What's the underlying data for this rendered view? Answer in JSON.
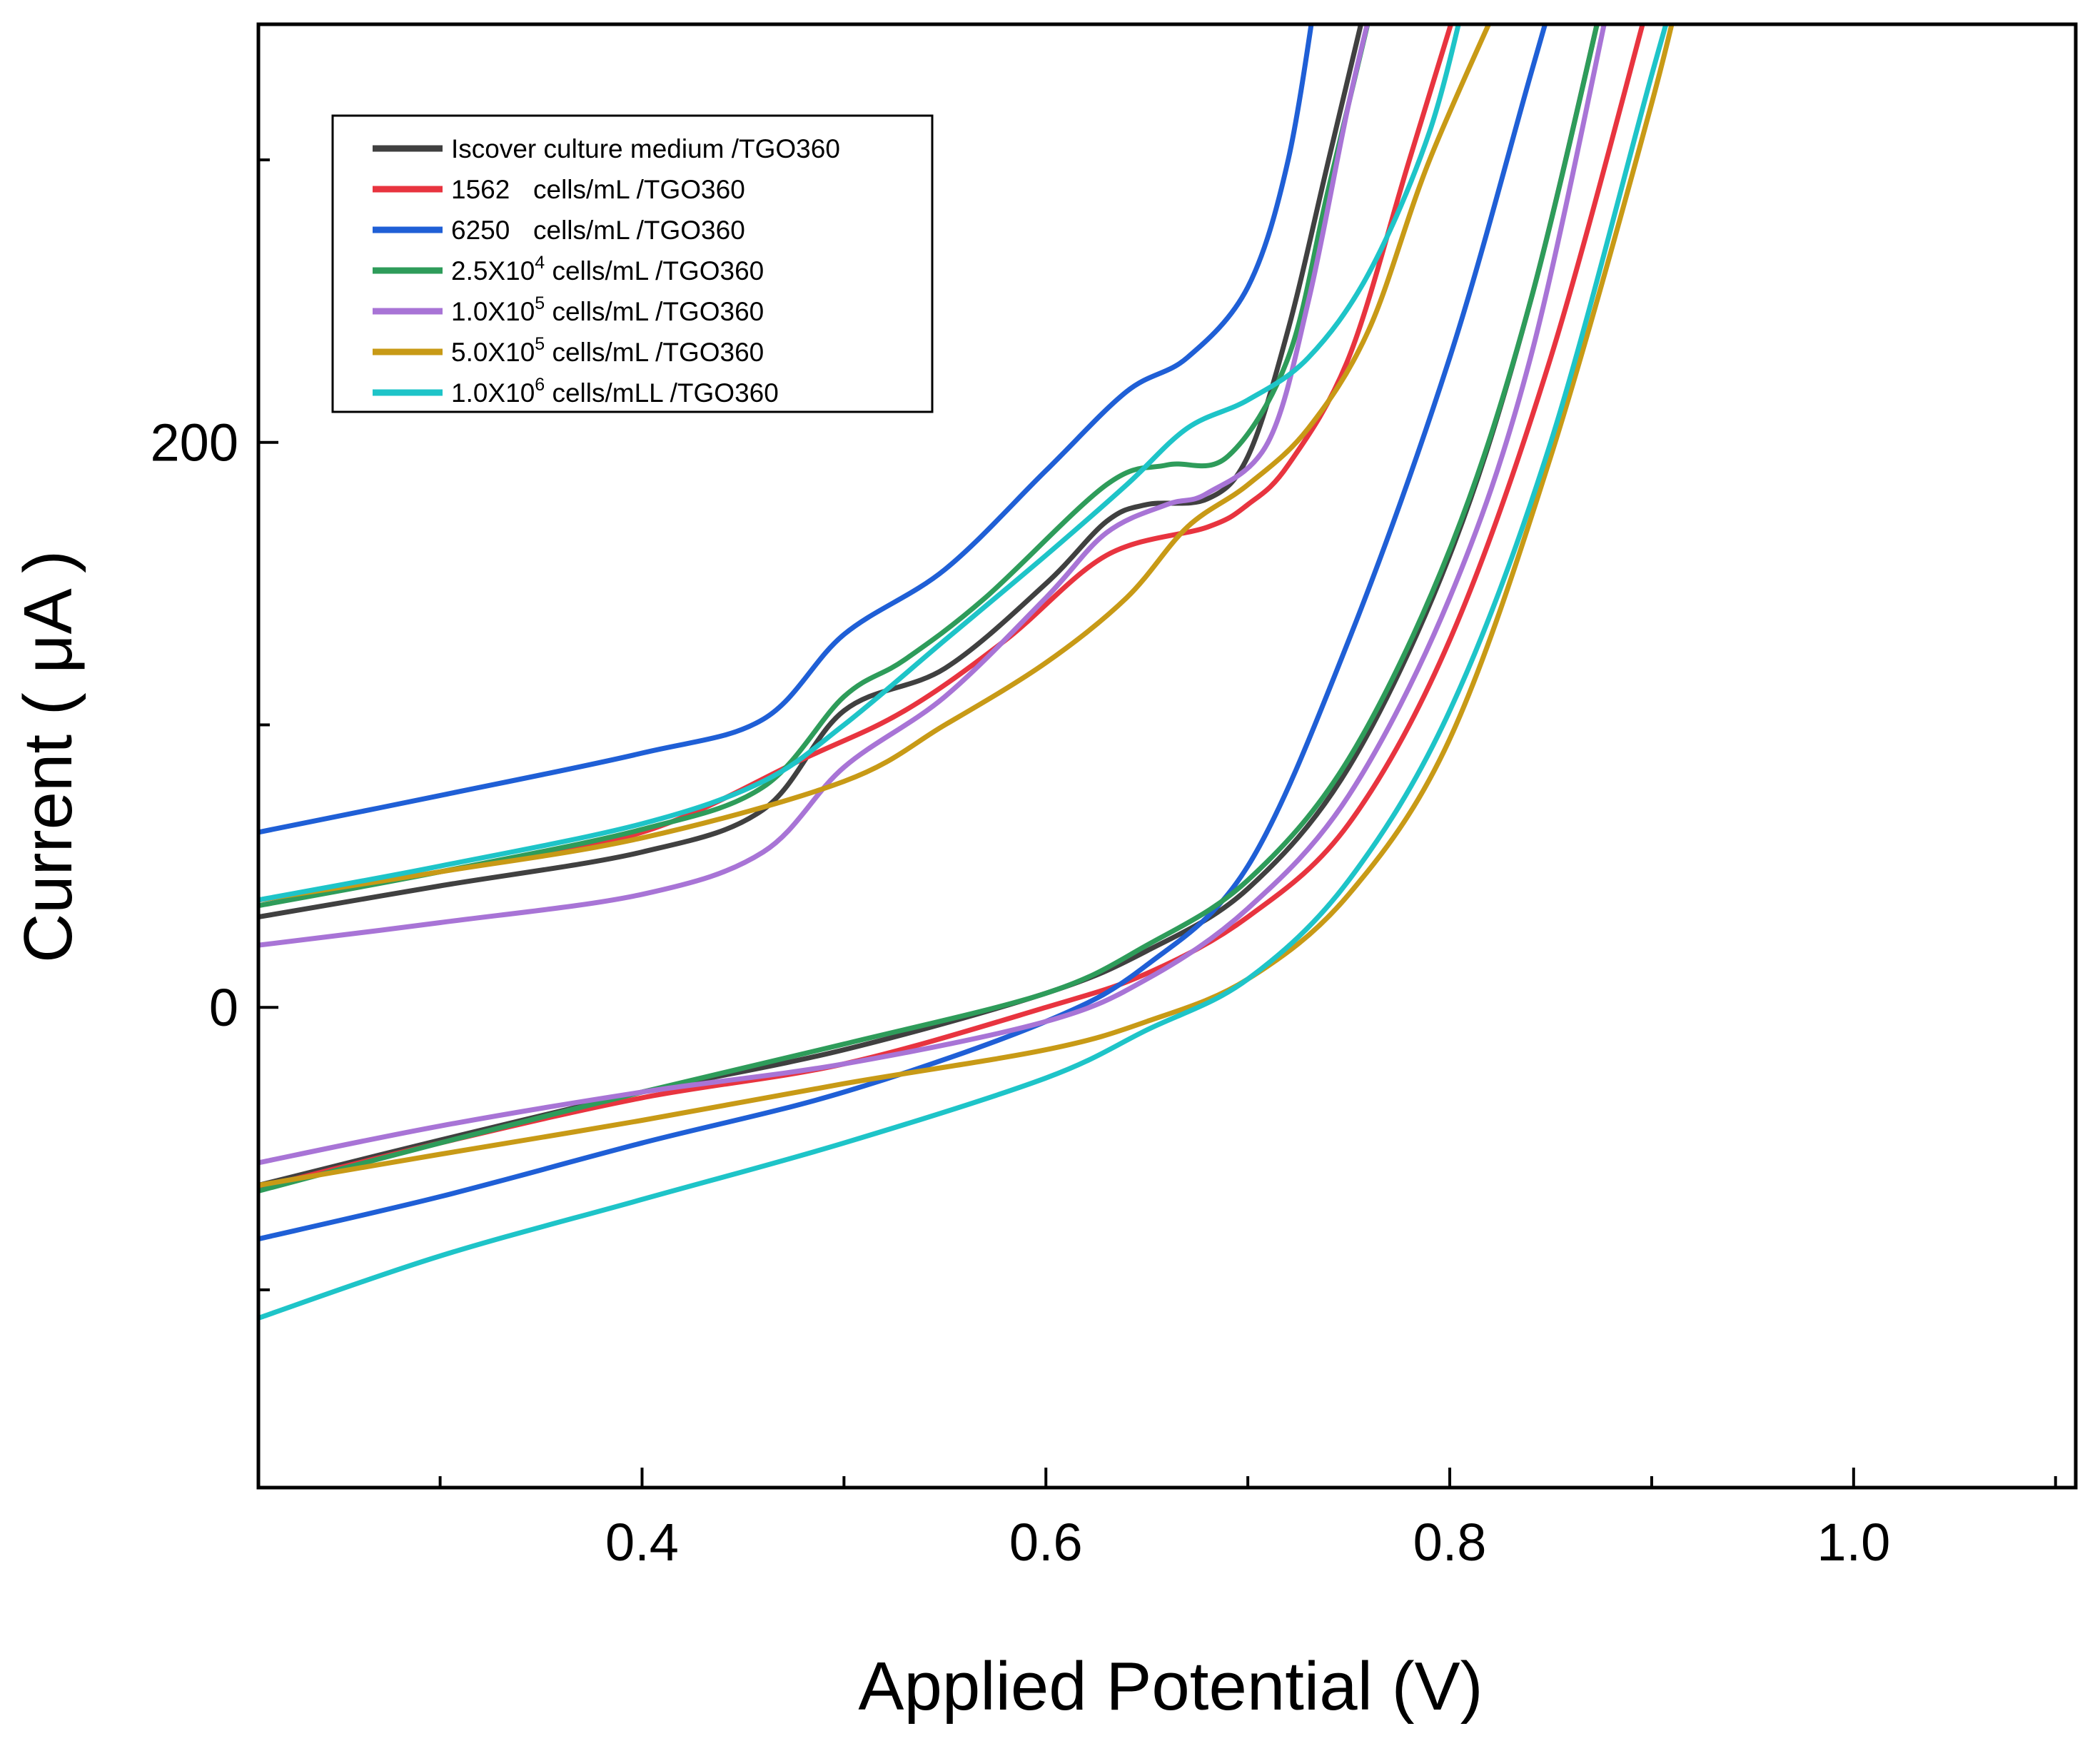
{
  "chart_data": {
    "type": "line",
    "title": "",
    "xlabel": "Applied Potential (V)",
    "ylabel": "Current ( μA )",
    "xlim": [
      0.21,
      1.11
    ],
    "ylim": [
      -170,
      348
    ],
    "x_ticks": [
      {
        "value": 0.4,
        "label": "0.4"
      },
      {
        "value": 0.6,
        "label": "0.6"
      },
      {
        "value": 0.8,
        "label": "0.8"
      },
      {
        "value": 1.0,
        "label": "1.0"
      }
    ],
    "y_ticks": [
      {
        "value": 0,
        "label": "0"
      },
      {
        "value": 200,
        "label": "200"
      }
    ],
    "x_minor_ticks": [
      0.3,
      0.5,
      0.7,
      0.9,
      1.1
    ],
    "y_minor_ticks": [
      -100,
      100,
      300
    ],
    "legend_position": "top-left",
    "series": [
      {
        "name": "Iscover culture medium /TGO360",
        "label_main": "Iscover culture medium /TGO360",
        "color": "#404040",
        "upper": [
          [
            0.21,
            32
          ],
          [
            0.3,
            43
          ],
          [
            0.4,
            55
          ],
          [
            0.46,
            70
          ],
          [
            0.5,
            105
          ],
          [
            0.55,
            120
          ],
          [
            0.6,
            150
          ],
          [
            0.63,
            172
          ],
          [
            0.65,
            178
          ],
          [
            0.68,
            180
          ],
          [
            0.7,
            195
          ],
          [
            0.72,
            240
          ],
          [
            0.74,
            300
          ],
          [
            0.76,
            360
          ]
        ],
        "lower": [
          [
            0.21,
            -63
          ],
          [
            0.3,
            -47
          ],
          [
            0.4,
            -30
          ],
          [
            0.5,
            -15
          ],
          [
            0.6,
            5
          ],
          [
            0.65,
            20
          ],
          [
            0.7,
            42
          ],
          [
            0.75,
            85
          ],
          [
            0.8,
            160
          ],
          [
            0.84,
            250
          ],
          [
            0.88,
            370
          ]
        ]
      },
      {
        "name": "1562 cells/mL /TGO360",
        "label_pre": "1562",
        "label_main": "cells/mL /TGO360",
        "color": "#e8343f",
        "upper": [
          [
            0.21,
            38
          ],
          [
            0.3,
            48
          ],
          [
            0.4,
            62
          ],
          [
            0.48,
            88
          ],
          [
            0.53,
            105
          ],
          [
            0.58,
            130
          ],
          [
            0.63,
            160
          ],
          [
            0.68,
            170
          ],
          [
            0.7,
            178
          ],
          [
            0.72,
            192
          ],
          [
            0.75,
            230
          ],
          [
            0.78,
            300
          ],
          [
            0.81,
            370
          ]
        ],
        "lower": [
          [
            0.21,
            -64
          ],
          [
            0.3,
            -48
          ],
          [
            0.4,
            -32
          ],
          [
            0.5,
            -20
          ],
          [
            0.6,
            0
          ],
          [
            0.65,
            12
          ],
          [
            0.7,
            32
          ],
          [
            0.75,
            65
          ],
          [
            0.8,
            130
          ],
          [
            0.85,
            230
          ],
          [
            0.9,
            360
          ]
        ]
      },
      {
        "name": "6250 cells/mL /TGO360",
        "label_pre": "6250",
        "label_main": "cells/mL /TGO360",
        "color": "#1f5fd6",
        "upper": [
          [
            0.21,
            62
          ],
          [
            0.3,
            75
          ],
          [
            0.4,
            90
          ],
          [
            0.46,
            102
          ],
          [
            0.5,
            132
          ],
          [
            0.55,
            155
          ],
          [
            0.6,
            190
          ],
          [
            0.64,
            218
          ],
          [
            0.67,
            230
          ],
          [
            0.7,
            255
          ],
          [
            0.72,
            300
          ],
          [
            0.735,
            365
          ]
        ],
        "lower": [
          [
            0.21,
            -82
          ],
          [
            0.3,
            -67
          ],
          [
            0.4,
            -48
          ],
          [
            0.5,
            -30
          ],
          [
            0.6,
            -5
          ],
          [
            0.65,
            15
          ],
          [
            0.7,
            50
          ],
          [
            0.75,
            130
          ],
          [
            0.8,
            230
          ],
          [
            0.84,
            330
          ],
          [
            0.86,
            380
          ]
        ]
      },
      {
        "name": "2.5X10^4 cells/mL /TGO360",
        "label_main": "cells/mL /TGO360",
        "mant": "2.5X10",
        "exp": "4",
        "color": "#2e9c5a",
        "upper": [
          [
            0.21,
            36
          ],
          [
            0.3,
            48
          ],
          [
            0.4,
            63
          ],
          [
            0.46,
            78
          ],
          [
            0.5,
            110
          ],
          [
            0.53,
            123
          ],
          [
            0.57,
            145
          ],
          [
            0.63,
            185
          ],
          [
            0.66,
            192
          ],
          [
            0.69,
            195
          ],
          [
            0.72,
            230
          ],
          [
            0.74,
            290
          ],
          [
            0.765,
            365
          ]
        ],
        "lower": [
          [
            0.21,
            -65
          ],
          [
            0.3,
            -48
          ],
          [
            0.4,
            -30
          ],
          [
            0.5,
            -13
          ],
          [
            0.6,
            5
          ],
          [
            0.65,
            22
          ],
          [
            0.7,
            45
          ],
          [
            0.75,
            88
          ],
          [
            0.8,
            162
          ],
          [
            0.84,
            250
          ],
          [
            0.88,
            370
          ]
        ]
      },
      {
        "name": "1.0X10^5 cells/mL /TGO360",
        "label_main": "cells/mL /TGO360",
        "mant": "1.0X10",
        "exp": "5",
        "color": "#a874d6",
        "upper": [
          [
            0.21,
            22
          ],
          [
            0.3,
            30
          ],
          [
            0.4,
            40
          ],
          [
            0.46,
            55
          ],
          [
            0.5,
            85
          ],
          [
            0.55,
            110
          ],
          [
            0.6,
            145
          ],
          [
            0.63,
            168
          ],
          [
            0.66,
            178
          ],
          [
            0.68,
            182
          ],
          [
            0.71,
            200
          ],
          [
            0.73,
            250
          ],
          [
            0.75,
            320
          ],
          [
            0.765,
            365
          ]
        ],
        "lower": [
          [
            0.21,
            -55
          ],
          [
            0.3,
            -42
          ],
          [
            0.4,
            -30
          ],
          [
            0.5,
            -20
          ],
          [
            0.6,
            -5
          ],
          [
            0.65,
            10
          ],
          [
            0.7,
            35
          ],
          [
            0.75,
            75
          ],
          [
            0.8,
            145
          ],
          [
            0.84,
            230
          ],
          [
            0.88,
            360
          ]
        ]
      },
      {
        "name": "5.0X10^5 cells/mL /TGO360",
        "label_main": "cells/mL /TGO360",
        "mant": "5.0X10",
        "exp": "5",
        "color": "#c89a16",
        "upper": [
          [
            0.21,
            38
          ],
          [
            0.3,
            48
          ],
          [
            0.4,
            60
          ],
          [
            0.5,
            80
          ],
          [
            0.55,
            100
          ],
          [
            0.6,
            122
          ],
          [
            0.64,
            145
          ],
          [
            0.67,
            170
          ],
          [
            0.7,
            185
          ],
          [
            0.73,
            205
          ],
          [
            0.76,
            240
          ],
          [
            0.79,
            300
          ],
          [
            0.83,
            365
          ]
        ],
        "lower": [
          [
            0.21,
            -63
          ],
          [
            0.3,
            -52
          ],
          [
            0.4,
            -40
          ],
          [
            0.5,
            -27
          ],
          [
            0.6,
            -15
          ],
          [
            0.65,
            -5
          ],
          [
            0.7,
            10
          ],
          [
            0.75,
            40
          ],
          [
            0.8,
            95
          ],
          [
            0.85,
            195
          ],
          [
            0.9,
            320
          ],
          [
            0.92,
            380
          ]
        ]
      },
      {
        "name": "1.0X10^6 cells/mL /TGO360",
        "label_main": "cells/mL /TGO360",
        "label_prefix_L": "L ",
        "mant": "1.0X10",
        "exp": "6",
        "color": "#1ec4c8",
        "upper": [
          [
            0.21,
            38
          ],
          [
            0.3,
            50
          ],
          [
            0.4,
            65
          ],
          [
            0.46,
            80
          ],
          [
            0.5,
            100
          ],
          [
            0.55,
            130
          ],
          [
            0.6,
            160
          ],
          [
            0.64,
            185
          ],
          [
            0.67,
            205
          ],
          [
            0.7,
            215
          ],
          [
            0.73,
            230
          ],
          [
            0.76,
            260
          ],
          [
            0.79,
            310
          ],
          [
            0.81,
            365
          ]
        ],
        "lower": [
          [
            0.21,
            -110
          ],
          [
            0.3,
            -88
          ],
          [
            0.4,
            -68
          ],
          [
            0.5,
            -48
          ],
          [
            0.6,
            -25
          ],
          [
            0.65,
            -8
          ],
          [
            0.7,
            10
          ],
          [
            0.75,
            45
          ],
          [
            0.8,
            105
          ],
          [
            0.85,
            200
          ],
          [
            0.9,
            330
          ],
          [
            0.92,
            380
          ]
        ]
      }
    ]
  }
}
